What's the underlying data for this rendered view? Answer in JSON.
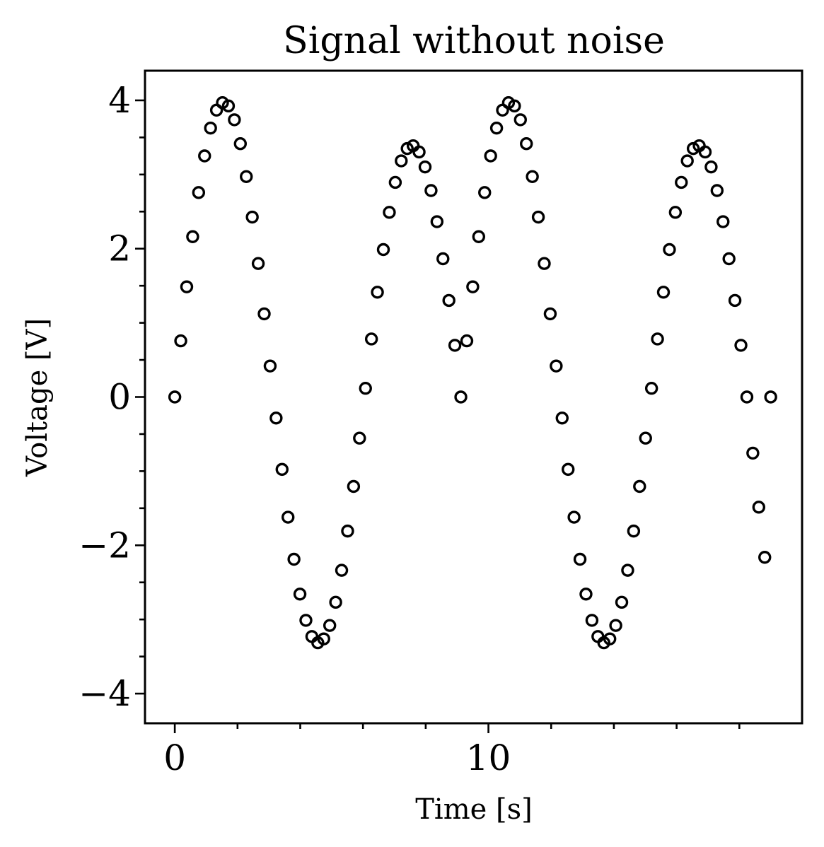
{
  "chart_data": {
    "type": "scatter",
    "title": "Signal without noise",
    "xlabel": "Time [s]",
    "ylabel": "Voltage [V]",
    "xlim": [
      -0.95,
      20.0
    ],
    "ylim": [
      -4.4,
      4.4
    ],
    "x_major_ticks": [
      0,
      10
    ],
    "x_major_tick_labels": [
      "0",
      "10"
    ],
    "x_minor_ticks": [
      2,
      4,
      6,
      8,
      12,
      14,
      16,
      18
    ],
    "y_major_ticks": [
      -4,
      -2,
      0,
      2,
      4
    ],
    "y_major_tick_labels": [
      "−4",
      "−2",
      "0",
      "2",
      "4"
    ],
    "y_minor_ticks": [
      -3.5,
      -3,
      -2.5,
      -1.5,
      -1,
      -0.5,
      0.5,
      1,
      1.5,
      2.5,
      3,
      3.5
    ],
    "grid": false,
    "marker": "open-circle",
    "marker_color": "#000000",
    "series": [
      {
        "x": [
          0.0,
          0.19,
          0.38,
          0.57,
          0.76,
          0.95,
          1.14,
          1.33,
          1.52,
          1.71,
          1.9,
          2.09,
          2.28,
          2.47,
          2.66,
          2.85,
          3.04,
          3.23,
          3.42,
          3.61,
          3.8,
          3.99,
          4.18,
          4.37,
          4.56,
          4.75,
          4.94,
          5.13,
          5.32,
          5.51,
          5.7,
          5.89,
          6.08,
          6.27,
          6.46,
          6.65,
          6.84,
          7.03,
          7.22,
          7.41,
          7.6,
          7.79,
          7.98,
          8.17,
          8.36,
          8.55,
          8.74,
          8.93,
          9.12,
          9.31,
          9.5,
          9.69,
          9.88,
          10.07,
          10.26,
          10.45,
          10.64,
          10.83,
          11.02,
          11.21,
          11.4,
          11.59,
          11.78,
          11.97,
          12.16,
          12.35,
          12.54,
          12.73,
          12.92,
          13.11,
          13.3,
          13.49,
          13.68,
          13.87,
          14.06,
          14.25,
          14.44,
          14.63,
          14.82,
          15.01,
          15.2,
          15.39,
          15.58,
          15.77,
          15.96,
          16.15,
          16.34,
          16.53,
          16.72,
          16.91,
          17.1,
          17.29,
          17.48,
          17.67,
          17.86,
          18.05,
          18.24,
          18.43,
          18.62,
          18.81,
          19.0
        ],
        "y": [
          0.0,
          0.757,
          1.486,
          2.162,
          2.757,
          3.251,
          3.626,
          3.868,
          3.969,
          3.925,
          3.738,
          3.416,
          2.972,
          2.426,
          1.8,
          1.121,
          0.418,
          -0.284,
          -0.976,
          -1.621,
          -2.188,
          -2.658,
          -3.012,
          -3.23,
          -3.314,
          -3.262,
          -3.081,
          -2.768,
          -2.337,
          -1.808,
          -1.206,
          -0.555,
          0.117,
          0.782,
          1.413,
          1.988,
          2.49,
          2.894,
          3.184,
          3.35,
          3.388,
          3.304,
          3.102,
          2.784,
          2.364,
          1.864,
          1.302,
          0.697,
          0.0,
          0.757,
          1.486,
          2.162,
          2.757,
          3.251,
          3.626,
          3.868,
          3.969,
          3.925,
          3.738,
          3.416,
          2.972,
          2.426,
          1.8,
          1.121,
          0.418,
          -0.284,
          -0.976,
          -1.621,
          -2.188,
          -2.658,
          -3.012,
          -3.23,
          -3.314,
          -3.262,
          -3.081,
          -2.768,
          -2.337,
          -1.808,
          -1.206,
          -0.555,
          0.117,
          0.782,
          1.413,
          1.988,
          2.49,
          2.894,
          3.184,
          3.35,
          3.388,
          3.304,
          3.102,
          2.784,
          2.364,
          1.864,
          1.302,
          0.697,
          0.0,
          -0.757,
          -1.486,
          -2.162,
          0.0
        ]
      }
    ]
  }
}
